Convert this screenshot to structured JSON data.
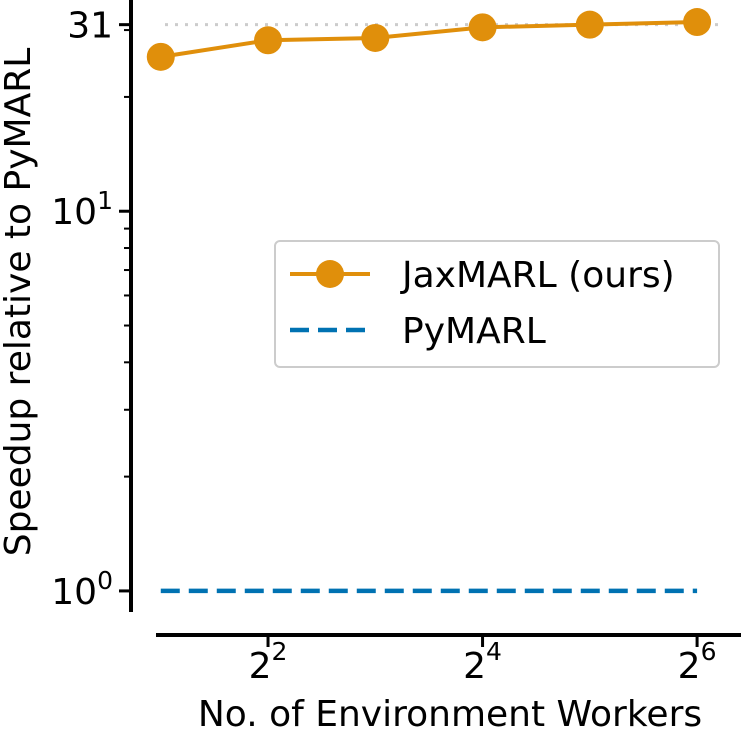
{
  "chart_data": {
    "type": "line",
    "xlabel": "No. of Environment Workers",
    "ylabel": "Speedup relative to PyMARL",
    "x_scale": "log2",
    "y_scale": "log10",
    "xlim": [
      1.65,
      85
    ],
    "ylim": [
      0.88,
      36
    ],
    "x_ticks": [
      {
        "value": 4,
        "base": "2",
        "exp": "2"
      },
      {
        "value": 16,
        "base": "2",
        "exp": "4"
      },
      {
        "value": 64,
        "base": "2",
        "exp": "6"
      }
    ],
    "y_ticks": [
      {
        "value": 1,
        "base": "10",
        "exp": "0"
      },
      {
        "value": 10,
        "base": "10",
        "exp": "1"
      },
      {
        "value": 31,
        "text": "31"
      }
    ],
    "y_minor_ticks": [
      2,
      3,
      4,
      5,
      6,
      7,
      8,
      9,
      20,
      30
    ],
    "reference_line": {
      "value": 31,
      "style": "dotted",
      "color": "#cccccc"
    },
    "legend_position": "center-right",
    "series": [
      {
        "name": "JaxMARL (ours)",
        "color": "#e08f0b",
        "style": "solid-marker",
        "x": [
          2,
          4,
          8,
          16,
          32,
          64
        ],
        "y": [
          25.5,
          28.2,
          28.6,
          30.5,
          31.0,
          31.5
        ]
      },
      {
        "name": "PyMARL",
        "color": "#0072b2",
        "style": "dashed",
        "x": [
          2,
          64
        ],
        "y": [
          1,
          1
        ]
      }
    ]
  }
}
